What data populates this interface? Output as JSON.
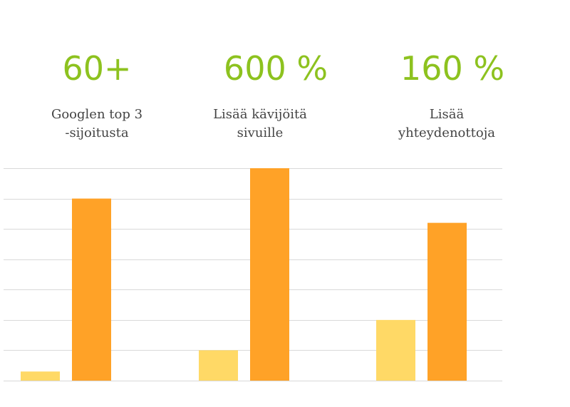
{
  "stats": [
    {
      "value": "60+",
      "label_line1": "Googlen top 3",
      "label_line2": "-sijoitusta"
    },
    {
      "value": "600 %",
      "label_line1": "Lisää kävijöitä",
      "label_line2": "sivuille"
    },
    {
      "value": "160 %",
      "label_line1": "Lisää",
      "label_line2": "yhteydenottoja"
    }
  ],
  "colors": {
    "accent_text": "#8dc21f",
    "label_text": "#444444",
    "bar_before": "#ffd966",
    "bar_after": "#ffa227",
    "grid": "#d9d9d9"
  },
  "chart_data": {
    "type": "bar",
    "categories": [
      "Googlen top 3 -sijoitusta",
      "Lisää kävijöitä sivuille",
      "Lisää yhteydenottoja"
    ],
    "series": [
      {
        "values": [
          0.3,
          1.0,
          2.0
        ]
      },
      {
        "values": [
          6.0,
          7.0,
          5.2
        ]
      }
    ],
    "ylim": [
      0,
      7
    ],
    "grid": true,
    "gridlines": 8,
    "legend": "none",
    "axis_labels_visible": false
  }
}
